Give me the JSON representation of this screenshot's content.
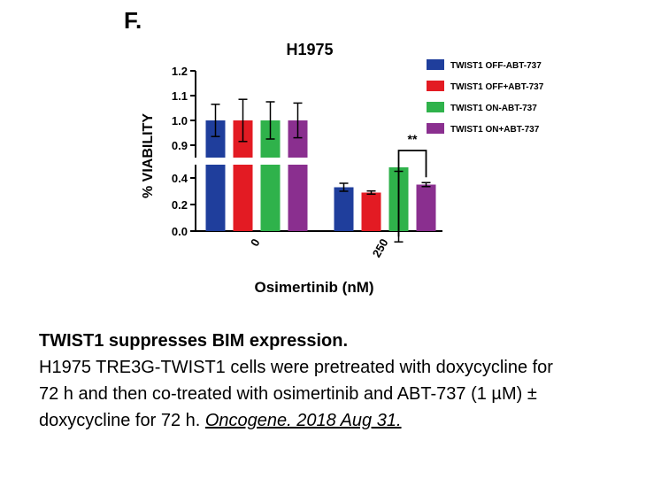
{
  "panel_label": "F.",
  "chart_data": {
    "type": "bar",
    "title": "H1975",
    "xlabel": "Osimertinib (nM)",
    "ylabel": "% VIABILITY",
    "categories": [
      "0",
      "250"
    ],
    "y_axis": {
      "broken": true,
      "lower_range": [
        0,
        0.5
      ],
      "upper_range": [
        0.85,
        1.2
      ],
      "lower_ticks": [
        "0.0",
        "0.2",
        "0.4"
      ],
      "upper_ticks": [
        "0.9",
        "1.0",
        "1.1",
        "1.2"
      ]
    },
    "legend_position": "top-right",
    "series": [
      {
        "name": "TWIST1 OFF-ABT-737",
        "color": "#1f3e9c",
        "values": [
          1.0,
          0.33
        ],
        "errors": [
          0.065,
          0.03
        ]
      },
      {
        "name": "TWIST1 OFF+ABT-737",
        "color": "#e31b23",
        "values": [
          1.0,
          0.29
        ],
        "errors": [
          0.085,
          0.012
        ]
      },
      {
        "name": "TWIST1 ON-ABT-737",
        "color": "#2fb24b",
        "values": [
          1.0,
          0.48
        ],
        "errors": [
          0.075,
          0.03
        ]
      },
      {
        "name": "TWIST1 ON+ABT-737",
        "color": "#8a2f8f",
        "values": [
          1.0,
          0.35
        ],
        "errors": [
          0.07,
          0.015
        ]
      }
    ],
    "annotations": [
      {
        "text": "**",
        "between_series": [
          2,
          3
        ],
        "category": "250"
      }
    ]
  },
  "caption": {
    "title": "TWIST1 suppresses BIM expression.",
    "line1": "H1975 TRE3G-TWIST1 cells were pretreated with doxycycline for",
    "line2": "72 h and then co-treated with osimertinib and ABT-737 (1 µM) ±",
    "line3_pre": "doxycycline for 72 h. ",
    "link": "Oncogene. 2018 Aug 31."
  }
}
